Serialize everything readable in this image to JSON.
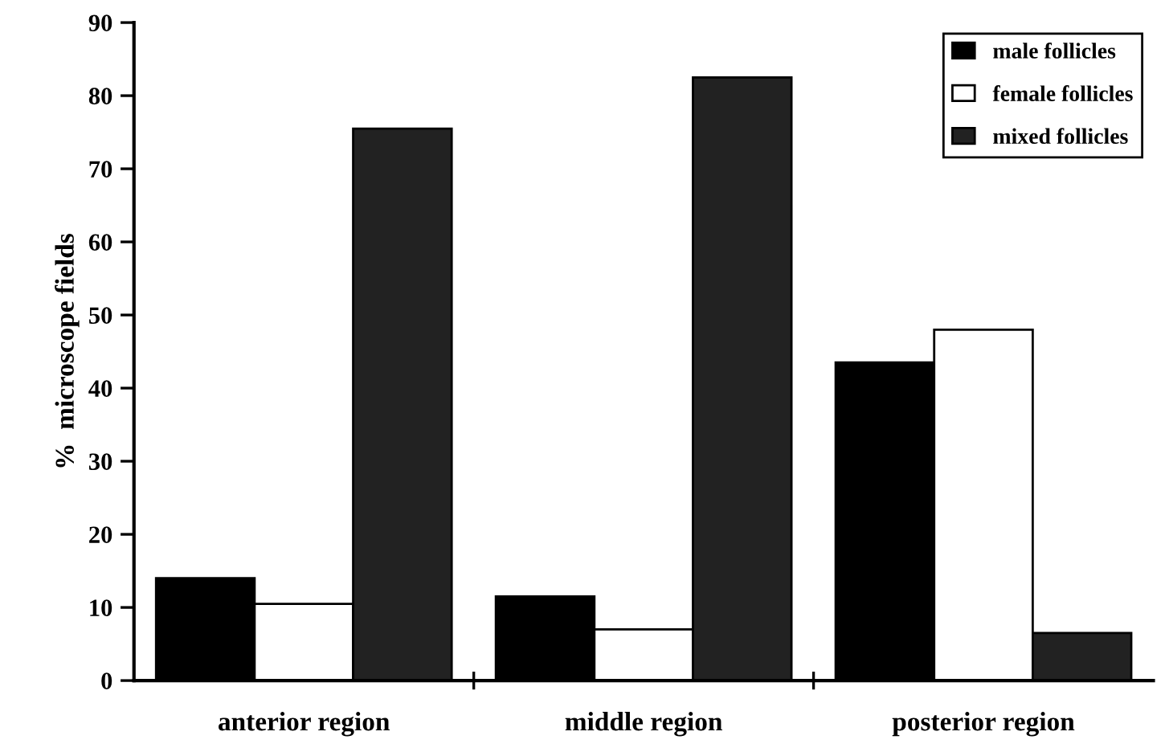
{
  "chart_data": {
    "type": "bar",
    "ylabel": "%  microscope fields",
    "categories": [
      "anterior region",
      "middle region",
      "posterior region"
    ],
    "series": [
      {
        "name": "male follicles",
        "color": "#000000",
        "values": [
          14,
          11.5,
          43.5
        ]
      },
      {
        "name": "female follicles",
        "color": "#ffffff",
        "values": [
          10.5,
          7,
          48
        ]
      },
      {
        "name": "mixed follicles",
        "color": "#222222",
        "values": [
          75.5,
          82.5,
          6.5
        ]
      }
    ],
    "ylim": [
      0,
      90
    ],
    "yticks": [
      0,
      10,
      20,
      30,
      40,
      50,
      60,
      70,
      80,
      90
    ],
    "grid": false,
    "legend": "top right"
  }
}
